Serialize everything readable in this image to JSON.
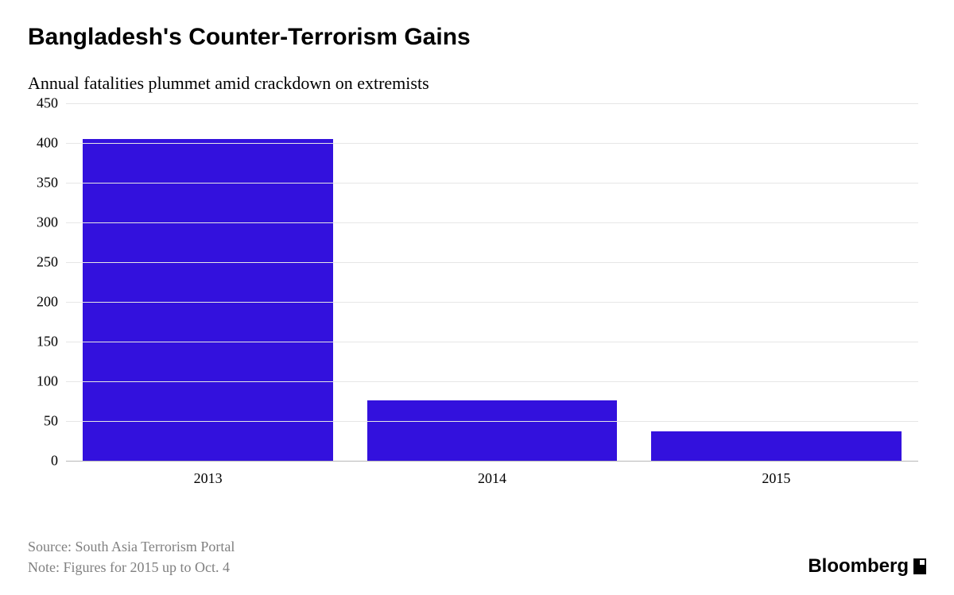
{
  "title": "Bangladesh's Counter-Terrorism Gains",
  "subtitle": "Annual fatalities plummet amid crackdown on extremists",
  "chart": {
    "type": "bar",
    "categories": [
      "2013",
      "2014",
      "2015"
    ],
    "values": [
      405,
      76,
      37
    ],
    "bar_color": "#3311dd",
    "ylim": [
      0,
      450
    ],
    "ytick_step": 50,
    "yticks": [
      0,
      50,
      100,
      150,
      200,
      250,
      300,
      350,
      400,
      450
    ],
    "grid_color": "#e6e6e6",
    "baseline_color": "#b8b8b8",
    "background_color": "#ffffff",
    "label_fontsize": 18,
    "title_fontsize": 30,
    "subtitle_fontsize": 22,
    "bar_width_ratio": 0.88
  },
  "footer": {
    "source": "Source: South Asia Terrorism Portal",
    "note": "Note: Figures for 2015 up to Oct. 4"
  },
  "brand": "Bloomberg"
}
